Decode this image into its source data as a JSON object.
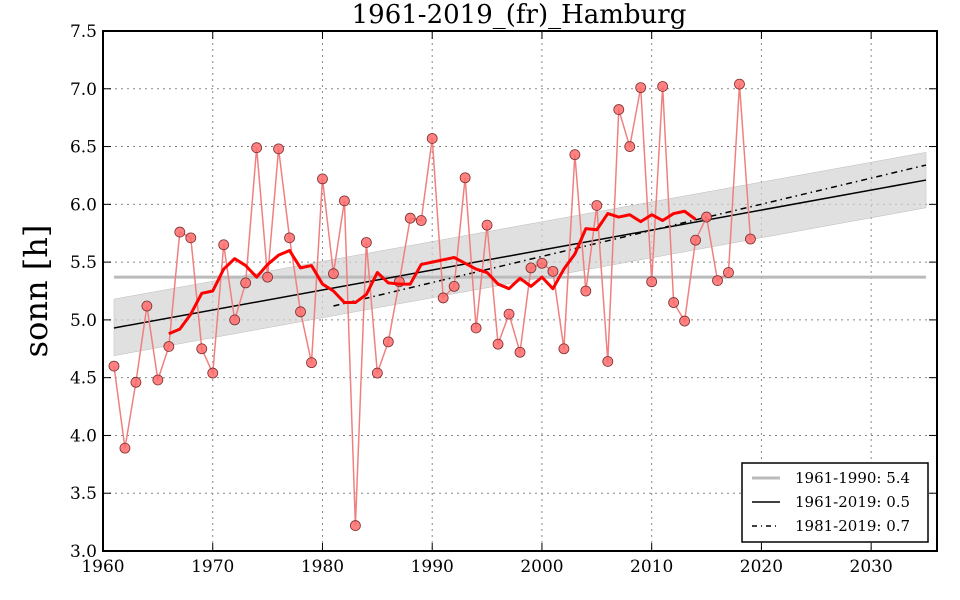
{
  "chart_data": {
    "type": "line",
    "title": "1961-2019_(fr)_Hamburg",
    "xlabel": "",
    "ylabel": "sonn [h]",
    "xlim": [
      1960,
      2036
    ],
    "ylim": [
      3.0,
      7.5
    ],
    "grid": true,
    "xticks": [
      "1960",
      "1970",
      "1980",
      "1990",
      "2000",
      "2010",
      "2020",
      "2030"
    ],
    "yticks": [
      "3.0",
      "3.5",
      "4.0",
      "4.5",
      "5.0",
      "5.5",
      "6.0",
      "6.5",
      "7.0",
      "7.5"
    ],
    "legend_position": "bottom-right",
    "colors": {
      "points": "#ff6b6b",
      "points_edge": "#7a3030",
      "annual_line": "#f08080",
      "smooth": "#ff0000",
      "mean_line": "#bbbbbb",
      "trend": "#000000",
      "band": "#d3d3d3"
    },
    "series": [
      {
        "name": "annual",
        "x": [
          1961,
          1962,
          1963,
          1964,
          1965,
          1966,
          1967,
          1968,
          1969,
          1970,
          1971,
          1972,
          1973,
          1974,
          1975,
          1976,
          1977,
          1978,
          1979,
          1980,
          1981,
          1982,
          1983,
          1984,
          1985,
          1986,
          1987,
          1988,
          1989,
          1990,
          1991,
          1992,
          1993,
          1994,
          1995,
          1996,
          1997,
          1998,
          1999,
          2000,
          2001,
          2002,
          2003,
          2004,
          2005,
          2006,
          2007,
          2008,
          2009,
          2010,
          2011,
          2012,
          2013,
          2014,
          2015,
          2016,
          2017,
          2018,
          2019
        ],
        "values": [
          4.6,
          3.89,
          4.46,
          5.12,
          4.48,
          4.77,
          5.76,
          5.71,
          4.75,
          4.54,
          5.65,
          5.0,
          5.32,
          6.49,
          5.37,
          6.48,
          5.71,
          5.07,
          4.63,
          6.22,
          5.4,
          6.03,
          3.22,
          5.67,
          4.54,
          4.81,
          5.33,
          5.88,
          5.86,
          6.57,
          5.19,
          5.29,
          6.23,
          4.93,
          5.82,
          4.79,
          5.05,
          4.72,
          5.45,
          5.49,
          5.42,
          4.75,
          6.43,
          5.25,
          5.99,
          4.64,
          6.82,
          6.5,
          7.01,
          5.33,
          7.02,
          5.15,
          4.99,
          5.69,
          5.89,
          5.34,
          5.41,
          7.04,
          5.7
        ]
      },
      {
        "name": "smoothed",
        "x": [
          1966,
          1967,
          1968,
          1969,
          1970,
          1971,
          1972,
          1973,
          1974,
          1975,
          1976,
          1977,
          1978,
          1979,
          1980,
          1981,
          1982,
          1983,
          1984,
          1985,
          1986,
          1987,
          1988,
          1989,
          1990,
          1991,
          1992,
          1993,
          1994,
          1995,
          1996,
          1997,
          1998,
          1999,
          2000,
          2001,
          2002,
          2003,
          2004,
          2005,
          2006,
          2007,
          2008,
          2009,
          2010,
          2011,
          2012,
          2013,
          2014
        ],
        "values": [
          4.88,
          4.92,
          5.05,
          5.23,
          5.25,
          5.44,
          5.53,
          5.47,
          5.37,
          5.48,
          5.56,
          5.6,
          5.45,
          5.47,
          5.31,
          5.25,
          5.15,
          5.15,
          5.22,
          5.41,
          5.32,
          5.31,
          5.31,
          5.48,
          5.5,
          5.52,
          5.54,
          5.49,
          5.44,
          5.41,
          5.31,
          5.27,
          5.36,
          5.29,
          5.37,
          5.27,
          5.44,
          5.57,
          5.79,
          5.78,
          5.92,
          5.89,
          5.91,
          5.85,
          5.91,
          5.86,
          5.92,
          5.94,
          5.87
        ]
      }
    ],
    "reference_lines": [
      {
        "label": "1961-1990: 5.4",
        "type": "mean",
        "y": 5.37,
        "x_range": [
          1961,
          2035
        ]
      },
      {
        "label": "1961-2019: 0.5",
        "type": "trend",
        "x": [
          1961,
          2035
        ],
        "y": [
          4.93,
          6.21
        ],
        "band_upper": [
          5.18,
          6.45
        ],
        "band_lower": [
          4.69,
          5.97
        ]
      },
      {
        "label": "1981-2019: 0.7",
        "type": "trend-dashdot",
        "x": [
          1981,
          2035
        ],
        "y": [
          5.12,
          6.34
        ]
      }
    ],
    "legend": [
      "1961-1990: 5.4",
      "1961-2019: 0.5",
      "1981-2019: 0.7"
    ]
  }
}
